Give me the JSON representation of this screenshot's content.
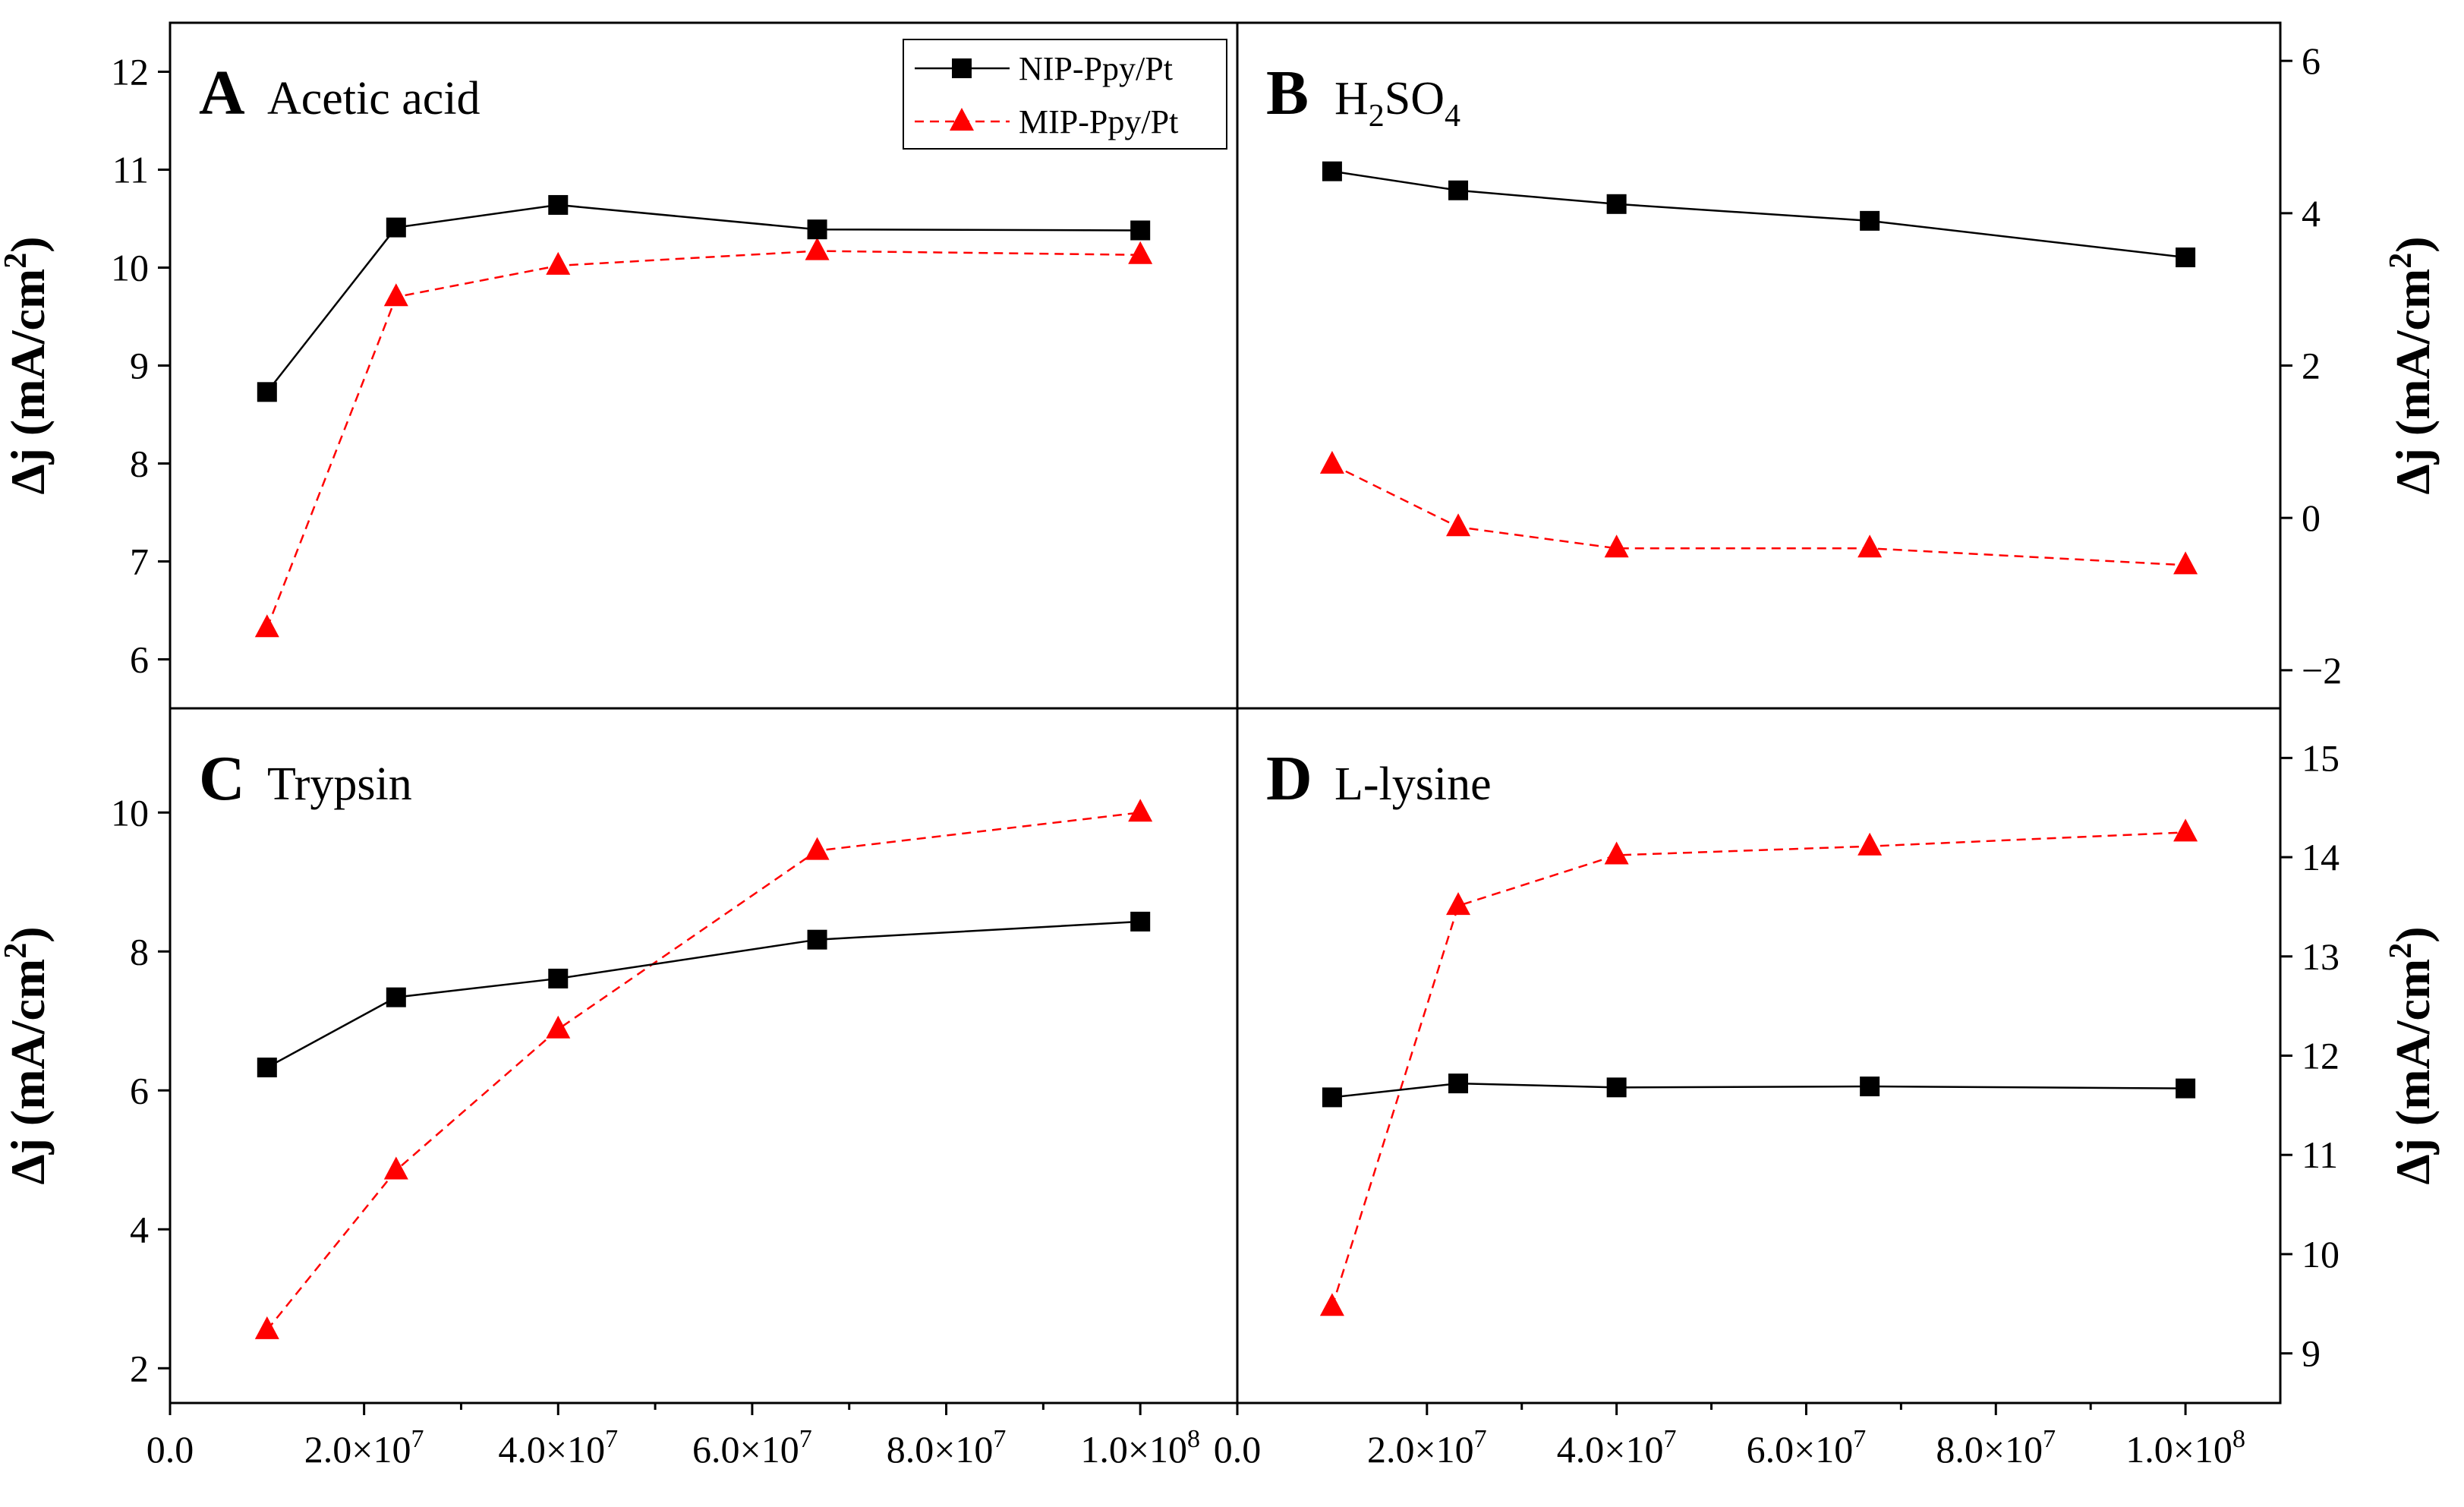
{
  "figure": {
    "colors": {
      "nip": "#000000",
      "mip": "#ff0000"
    },
    "legend": {
      "placement": "top-right of panel A",
      "nip_label": "NIP-Ppy/Pt",
      "mip_label": "MIP-Ppy/Pt"
    },
    "x_tick_labels": [
      {
        "mant": "0.0",
        "exp": ""
      },
      {
        "mant": "2.0×10",
        "exp": "7"
      },
      {
        "mant": "4.0×10",
        "exp": "7"
      },
      {
        "mant": "6.0×10",
        "exp": "7"
      },
      {
        "mant": "8.0×10",
        "exp": "7"
      },
      {
        "mant": "1.0×10",
        "exp": "8"
      }
    ],
    "ylabel": {
      "prefix": "Δj (mA/cm",
      "sup": "2",
      "suffix": ")"
    }
  },
  "chart_data": [
    {
      "type": "line",
      "panel": "A",
      "title": "Acetic acid",
      "x": [
        10000000,
        23300000,
        40000000,
        66700000,
        100000000
      ],
      "xlim": [
        0,
        110000000
      ],
      "ylim": [
        5.5,
        12.5
      ],
      "yticks": [
        6,
        7,
        8,
        9,
        10,
        11,
        12
      ],
      "yaxis_side": "left",
      "series": [
        {
          "name": "NIP-Ppy/Pt",
          "marker": "square",
          "style": "solid",
          "values": [
            8.73,
            10.41,
            10.64,
            10.39,
            10.38
          ]
        },
        {
          "name": "MIP-Ppy/Pt",
          "marker": "triangle",
          "style": "dashed",
          "values": [
            6.32,
            9.7,
            10.02,
            10.17,
            10.13
          ]
        }
      ]
    },
    {
      "type": "line",
      "panel": "B",
      "title": "H2SO4",
      "x": [
        10000000,
        23300000,
        40000000,
        66700000,
        100000000
      ],
      "xlim": [
        0,
        110000000
      ],
      "ylim": [
        -2.5,
        6.5
      ],
      "yticks": [
        -2,
        0,
        2,
        4,
        6
      ],
      "yaxis_side": "right",
      "series": [
        {
          "name": "NIP-Ppy/Pt",
          "marker": "square",
          "style": "solid",
          "values": [
            4.55,
            4.3,
            4.12,
            3.9,
            3.42
          ]
        },
        {
          "name": "MIP-Ppy/Pt",
          "marker": "triangle",
          "style": "dashed",
          "values": [
            0.7,
            -0.12,
            -0.4,
            -0.4,
            -0.62
          ]
        }
      ]
    },
    {
      "type": "line",
      "panel": "C",
      "title": "Trypsin",
      "x": [
        10000000,
        23300000,
        40000000,
        66700000,
        100000000
      ],
      "xlim": [
        0,
        110000000
      ],
      "ylim": [
        1.5,
        11.5
      ],
      "yticks": [
        2,
        4,
        6,
        8,
        10
      ],
      "yaxis_side": "left",
      "series": [
        {
          "name": "NIP-Ppy/Pt",
          "marker": "square",
          "style": "solid",
          "values": [
            6.33,
            7.34,
            7.61,
            8.17,
            8.43
          ]
        },
        {
          "name": "MIP-Ppy/Pt",
          "marker": "triangle",
          "style": "dashed",
          "values": [
            2.55,
            4.85,
            6.88,
            9.45,
            10.0
          ]
        }
      ]
    },
    {
      "type": "line",
      "panel": "D",
      "title": "L-lysine",
      "x": [
        10000000,
        23300000,
        40000000,
        66700000,
        100000000
      ],
      "xlim": [
        0,
        110000000
      ],
      "ylim": [
        8.5,
        15.5
      ],
      "yticks": [
        9,
        10,
        11,
        12,
        13,
        14,
        15
      ],
      "yaxis_side": "right",
      "series": [
        {
          "name": "NIP-Ppy/Pt",
          "marker": "square",
          "style": "solid",
          "values": [
            11.58,
            11.72,
            11.68,
            11.69,
            11.67
          ]
        },
        {
          "name": "MIP-Ppy/Pt",
          "marker": "triangle",
          "style": "dashed",
          "values": [
            9.47,
            13.51,
            14.02,
            14.11,
            14.25
          ]
        }
      ]
    }
  ]
}
